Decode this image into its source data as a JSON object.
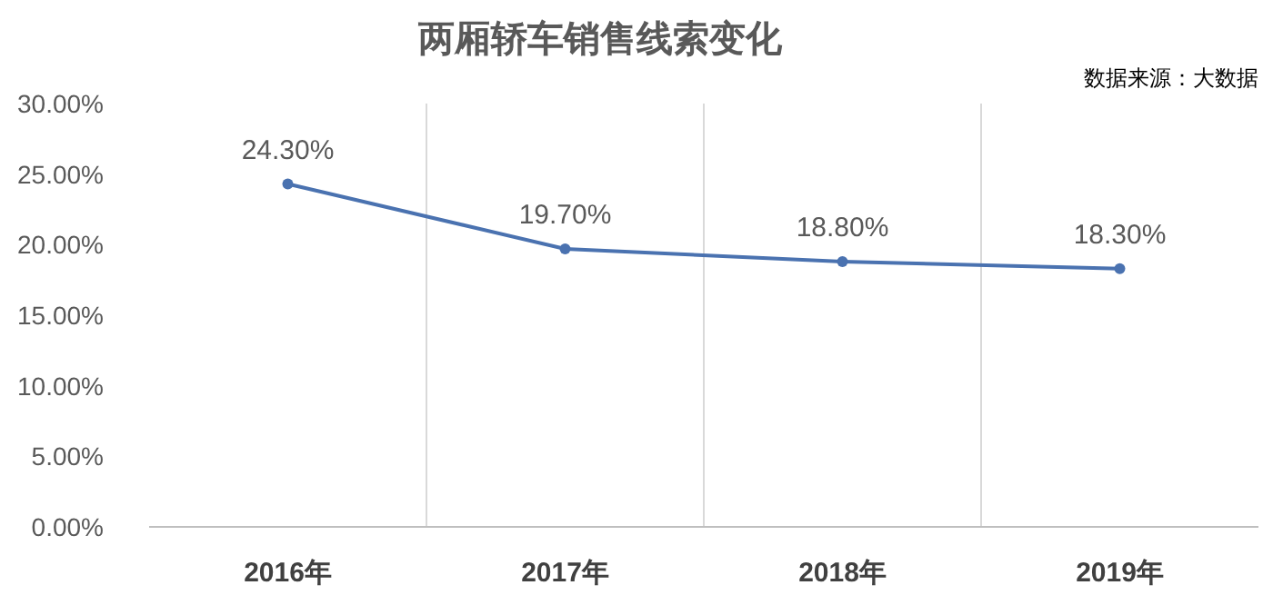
{
  "chart_data": {
    "type": "line",
    "title": "两厢轿车销售线索变化",
    "annotations": [
      "数据来源：大数据"
    ],
    "categories": [
      "2016年",
      "2017年",
      "2018年",
      "2019年"
    ],
    "series": [
      {
        "color": "#4a72b0",
        "values": [
          24.3,
          19.7,
          18.8,
          18.3
        ],
        "value_labels": [
          "24.30%",
          "19.70%",
          "18.80%",
          "18.30%"
        ]
      }
    ],
    "ylim": [
      0,
      30
    ],
    "yticks": [
      {
        "value": 0,
        "label": "0.00%"
      },
      {
        "value": 5,
        "label": "5.00%"
      },
      {
        "value": 10,
        "label": "10.00%"
      },
      {
        "value": 15,
        "label": "15.00%"
      },
      {
        "value": 20,
        "label": "20.00%"
      },
      {
        "value": 25,
        "label": "25.00%"
      },
      {
        "value": 30,
        "label": "30.00%"
      }
    ],
    "grid": "x",
    "marker": "circle"
  }
}
